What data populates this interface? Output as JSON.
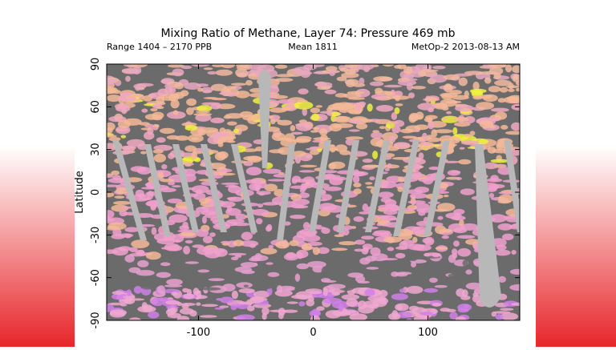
{
  "chart_data": {
    "type": "map",
    "title": "Mixing Ratio of Methane, Layer 74: Pressure 469 mb",
    "annotations": [
      "Range 1404 – 2170 PPB",
      "Mean 1811",
      "MetOp-2 2013-08-13 AM"
    ],
    "ylabel": "Latitude",
    "xlim": [
      -180,
      180
    ],
    "xticks": [
      -100,
      0,
      100
    ],
    "ylim": [
      -90,
      90
    ],
    "yticks": [
      -90,
      -60,
      -30,
      0,
      30,
      60,
      90
    ]
  }
}
